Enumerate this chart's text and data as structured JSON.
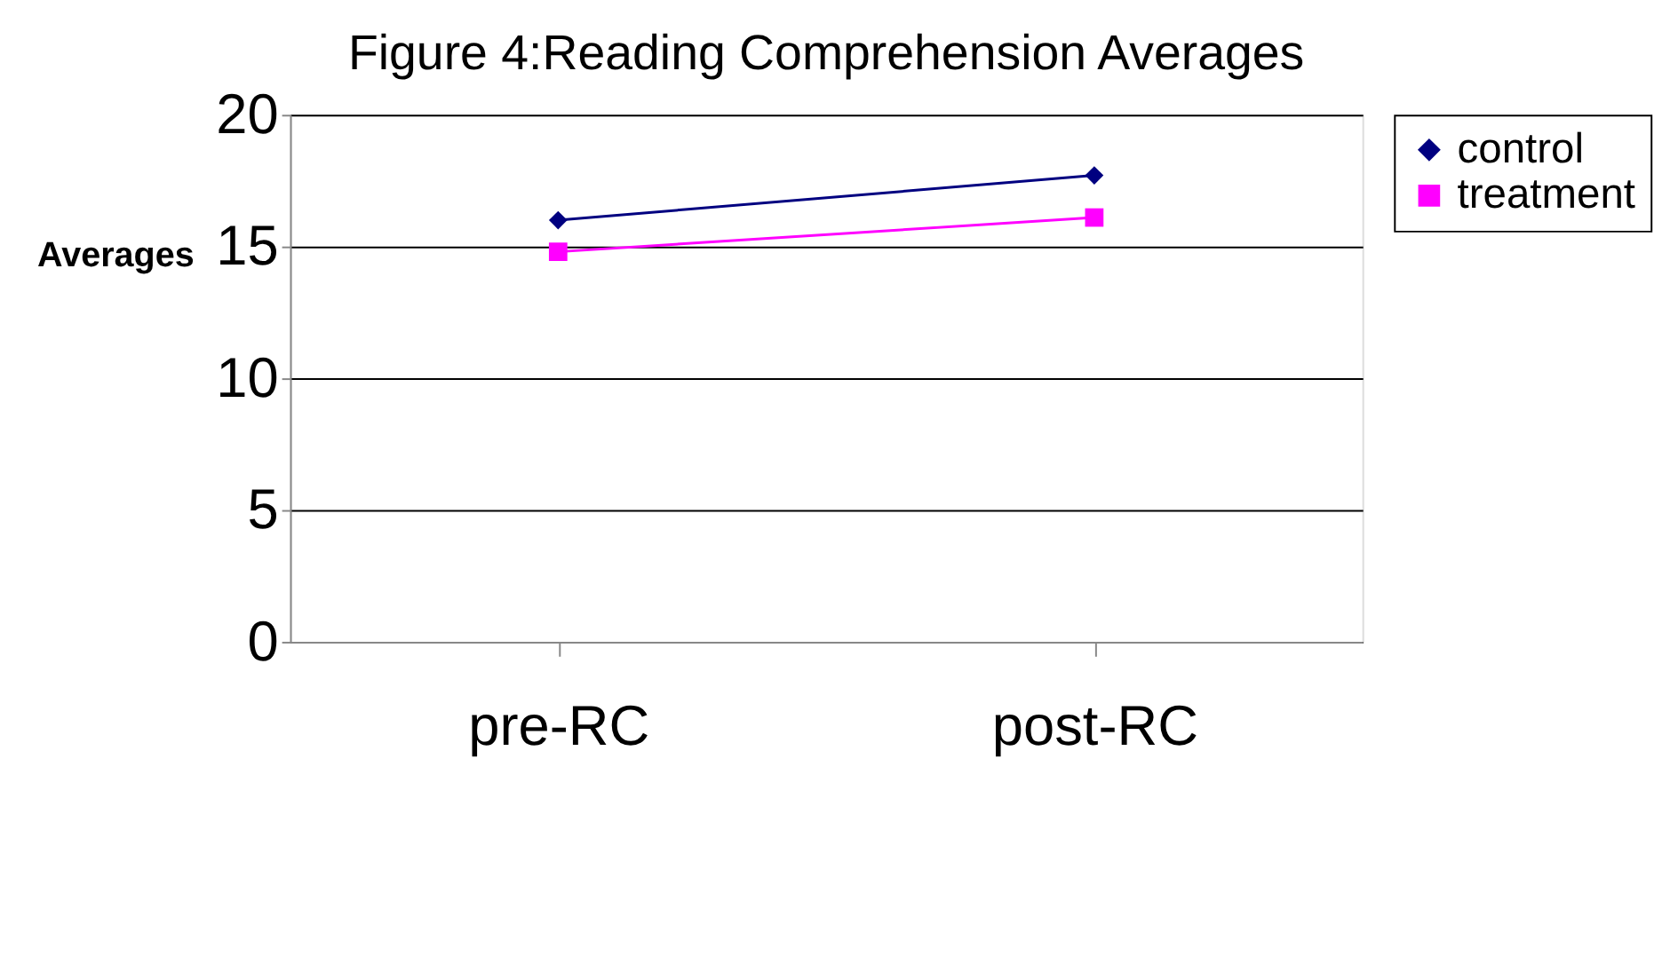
{
  "chart_data": {
    "type": "line",
    "title": "Figure 4:Reading Comprehension Averages",
    "ylabel": "Averages",
    "categories": [
      "pre-RC",
      "post-RC"
    ],
    "series": [
      {
        "name": "control",
        "color": "#000080",
        "values": [
          16,
          17.7
        ],
        "marker": "diamond"
      },
      {
        "name": "treatment",
        "color": "#ff00ff",
        "values": [
          14.8,
          16.1
        ],
        "marker": "square"
      }
    ],
    "ylim": [
      0,
      20
    ],
    "yticks": [
      0,
      5,
      10,
      15,
      20
    ],
    "grid": "y",
    "legend": "right"
  }
}
